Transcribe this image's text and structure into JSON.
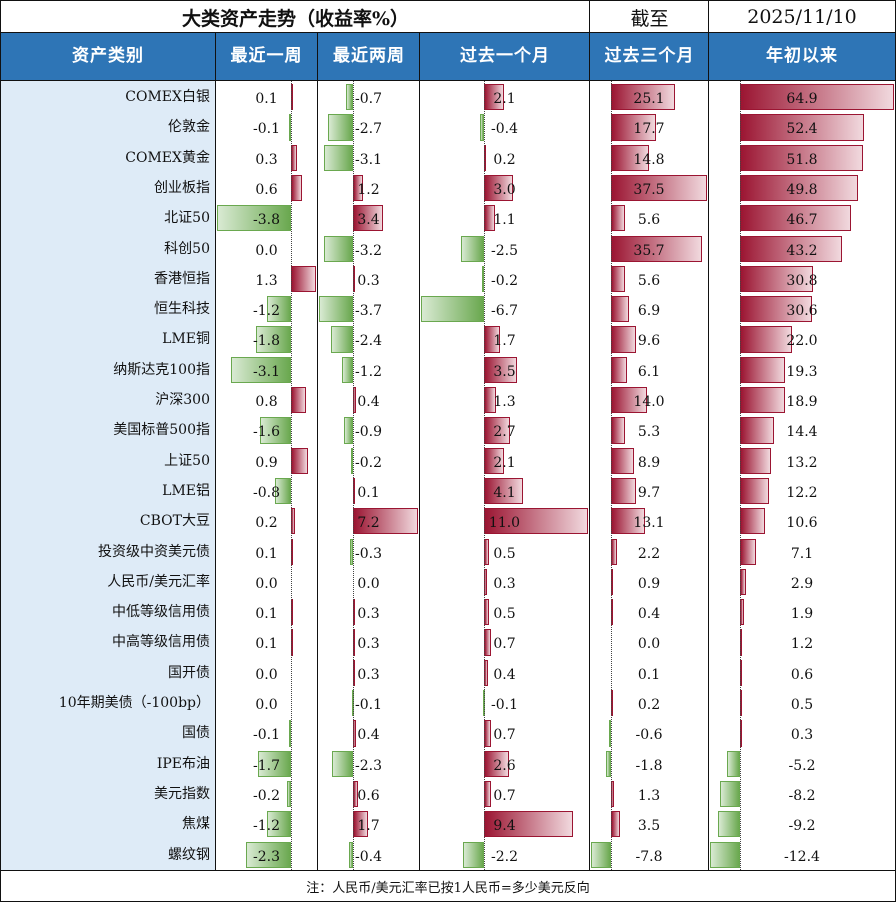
{
  "title": "大类资产走势（收益率%）",
  "date_label": "截至",
  "date": "2025/11/10",
  "headers": [
    "资产类别",
    "最近一周",
    "最近两周",
    "过去一个月",
    "过去三个月",
    "年初以来"
  ],
  "note": "注：人民币/美元汇率已按1人民币=多少美元反向",
  "colors": {
    "header_bg": "#2e75b6",
    "label_bg": "#deebf7",
    "positive": "#9b1532",
    "negative": "#6aa84f"
  },
  "chart_data": {
    "type": "table",
    "columns": [
      "最近一周",
      "最近两周",
      "过去一个月",
      "过去三个月",
      "年初以来"
    ],
    "rows": [
      {
        "asset": "COMEX白银",
        "values": [
          0.1,
          -0.7,
          2.1,
          25.1,
          64.9
        ]
      },
      {
        "asset": "伦敦金",
        "values": [
          -0.1,
          -2.7,
          -0.4,
          17.7,
          52.4
        ]
      },
      {
        "asset": "COMEX黄金",
        "values": [
          0.3,
          -3.1,
          0.2,
          14.8,
          51.8
        ]
      },
      {
        "asset": "创业板指",
        "values": [
          0.6,
          1.2,
          3.0,
          37.5,
          49.8
        ]
      },
      {
        "asset": "北证50",
        "values": [
          -3.8,
          3.4,
          1.1,
          5.6,
          46.7
        ]
      },
      {
        "asset": "科创50",
        "values": [
          0.0,
          -3.2,
          -2.5,
          35.7,
          43.2
        ]
      },
      {
        "asset": "香港恒指",
        "values": [
          1.3,
          0.3,
          -0.2,
          5.6,
          30.8
        ]
      },
      {
        "asset": "恒生科技",
        "values": [
          -1.2,
          -3.7,
          -6.7,
          6.9,
          30.6
        ]
      },
      {
        "asset": "LME铜",
        "values": [
          -1.8,
          -2.4,
          1.7,
          9.6,
          22.0
        ]
      },
      {
        "asset": "纳斯达克100指",
        "values": [
          -3.1,
          -1.2,
          3.5,
          6.1,
          19.3
        ]
      },
      {
        "asset": "沪深300",
        "values": [
          0.8,
          0.4,
          1.3,
          14.0,
          18.9
        ]
      },
      {
        "asset": "美国标普500指",
        "values": [
          -1.6,
          -0.9,
          2.7,
          5.3,
          14.4
        ]
      },
      {
        "asset": "上证50",
        "values": [
          0.9,
          -0.2,
          2.1,
          8.9,
          13.2
        ]
      },
      {
        "asset": "LME铝",
        "values": [
          -0.8,
          0.1,
          4.1,
          9.7,
          12.2
        ]
      },
      {
        "asset": "CBOT大豆",
        "values": [
          0.2,
          7.2,
          11.0,
          13.1,
          10.6
        ]
      },
      {
        "asset": "投资级中资美元债",
        "values": [
          0.1,
          -0.3,
          0.5,
          2.2,
          7.1
        ]
      },
      {
        "asset": "人民币/美元汇率",
        "values": [
          0.0,
          0.0,
          0.3,
          0.9,
          2.9
        ]
      },
      {
        "asset": "中低等级信用债",
        "values": [
          0.1,
          0.3,
          0.5,
          0.4,
          1.9
        ]
      },
      {
        "asset": "中高等级信用债",
        "values": [
          0.1,
          0.3,
          0.7,
          0.0,
          1.2
        ]
      },
      {
        "asset": "国开债",
        "values": [
          0.0,
          0.3,
          0.4,
          0.1,
          0.6
        ]
      },
      {
        "asset": "10年期美债（-100bp）",
        "values": [
          0.0,
          -0.1,
          -0.1,
          0.2,
          0.5
        ]
      },
      {
        "asset": "国债",
        "values": [
          -0.1,
          0.4,
          0.7,
          -0.6,
          0.3
        ]
      },
      {
        "asset": "IPE布油",
        "values": [
          -1.7,
          -2.3,
          2.6,
          -1.8,
          -5.2
        ]
      },
      {
        "asset": "美元指数",
        "values": [
          -0.2,
          0.6,
          0.7,
          1.3,
          -8.2
        ]
      },
      {
        "asset": "焦煤",
        "values": [
          -1.2,
          1.7,
          9.4,
          3.5,
          -9.2
        ]
      },
      {
        "asset": "螺纹钢",
        "values": [
          -2.3,
          -0.4,
          -2.2,
          -7.8,
          -12.4
        ]
      }
    ]
  }
}
